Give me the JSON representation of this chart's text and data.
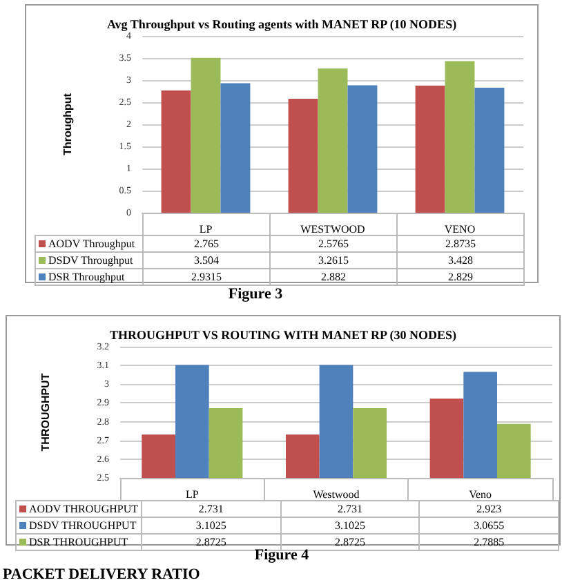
{
  "chart_data": [
    {
      "type": "bar",
      "title": "Avg Throughput vs Routing agents with MANET RP (10 NODES)",
      "ylabel": "Throughput",
      "categories": [
        "LP",
        "WESTWOOD",
        "VENO"
      ],
      "series": [
        {
          "name": "AODV Throughput",
          "color": "#c0504d",
          "values": [
            2.765,
            2.5765,
            2.8735
          ]
        },
        {
          "name": "DSDV Throughput",
          "color": "#9bbb59",
          "values": [
            3.504,
            3.2615,
            3.428
          ]
        },
        {
          "name": "DSR Throughput",
          "color": "#4f81bd",
          "values": [
            2.9315,
            2.882,
            2.829
          ]
        }
      ],
      "ylim": [
        0,
        4
      ],
      "yticks": [
        0,
        0.5,
        1,
        1.5,
        2,
        2.5,
        3,
        3.5,
        4
      ],
      "grid": "y",
      "legend": "bottom",
      "data_labels": true,
      "annotations": [
        "Figure 3"
      ]
    },
    {
      "type": "bar",
      "title": "THROUGHPUT VS ROUTING WITH MANET RP (30 NODES)",
      "ylabel": "THROUGHPUT",
      "categories": [
        "LP",
        "Westwood",
        "Veno"
      ],
      "series": [
        {
          "name": "AODV THROUGHPUT",
          "color": "#c0504d",
          "values": [
            2.731,
            2.731,
            2.923
          ]
        },
        {
          "name": "DSDV THROUGHPUT",
          "color": "#4f81bd",
          "values": [
            3.1025,
            3.1025,
            3.0655
          ]
        },
        {
          "name": "DSR THROUGHPUT",
          "color": "#9bbb59",
          "values": [
            2.8725,
            2.8725,
            2.7885
          ]
        }
      ],
      "ylim": [
        2.5,
        3.2
      ],
      "yticks": [
        2.5,
        2.6,
        2.7,
        2.8,
        2.9,
        3,
        3.1,
        3.2
      ],
      "grid": "y",
      "legend": "bottom",
      "data_labels": true,
      "annotations": [
        "Figure 4",
        "PACKET DELIVERY RATIO"
      ]
    }
  ]
}
